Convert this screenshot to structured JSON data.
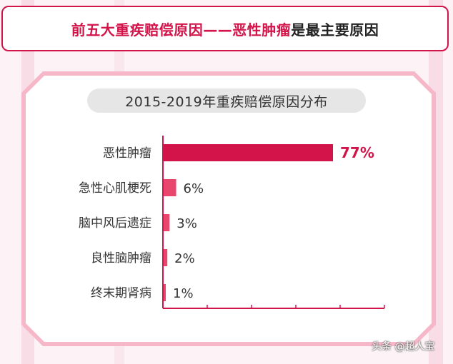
{
  "header": {
    "part1": "前五大重疾赔偿原因——",
    "part2": "恶性肿瘤",
    "part3": "是最主要原因"
  },
  "colors": {
    "accent": "#d2144a",
    "bar_secondary": "#e8466c",
    "pill_bg": "#e6e6e6"
  },
  "chart_data": {
    "type": "bar",
    "orientation": "horizontal",
    "title": "2015-2019年重疾赔偿原因分布",
    "categories": [
      "恶性肿瘤",
      "急性心肌梗死",
      "脑中风后遗症",
      "良性脑肿瘤",
      "终末期肾病"
    ],
    "values": [
      77,
      6,
      3,
      2,
      1
    ],
    "value_labels": [
      "77%",
      "6%",
      "3%",
      "2%",
      "1%"
    ],
    "unit": "%",
    "xlim": [
      0,
      100
    ],
    "grid": false
  },
  "watermark": "头条 @超人宝"
}
